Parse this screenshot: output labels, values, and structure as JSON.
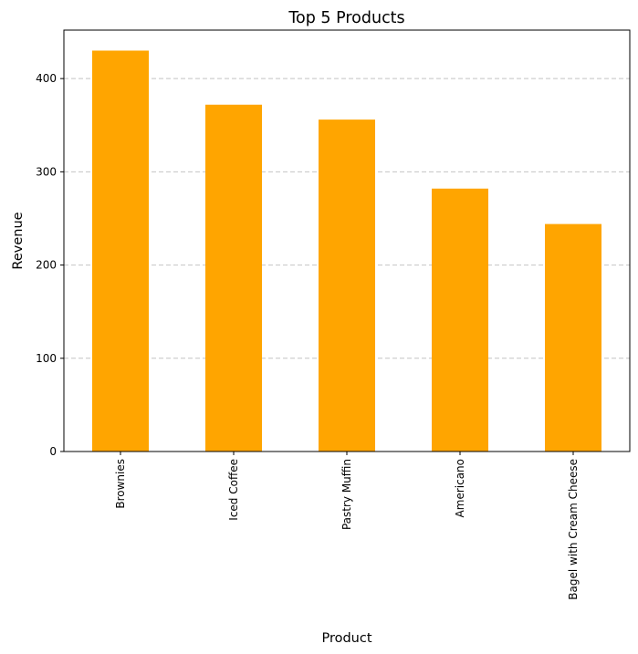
{
  "chart_data": {
    "type": "bar",
    "title": "Top 5 Products",
    "xlabel": "Product",
    "ylabel": "Revenue",
    "categories": [
      "Brownies",
      "Iced Coffee",
      "Pastry  Muffin",
      "Americano",
      "Bagel with Cream Cheese"
    ],
    "values": [
      430,
      372,
      356,
      282,
      244
    ],
    "ylim": [
      0,
      452
    ],
    "yticks": [
      0,
      100,
      200,
      300,
      400
    ],
    "bar_color": "#ffa500",
    "grid": "y-dashed",
    "legend": "none"
  }
}
